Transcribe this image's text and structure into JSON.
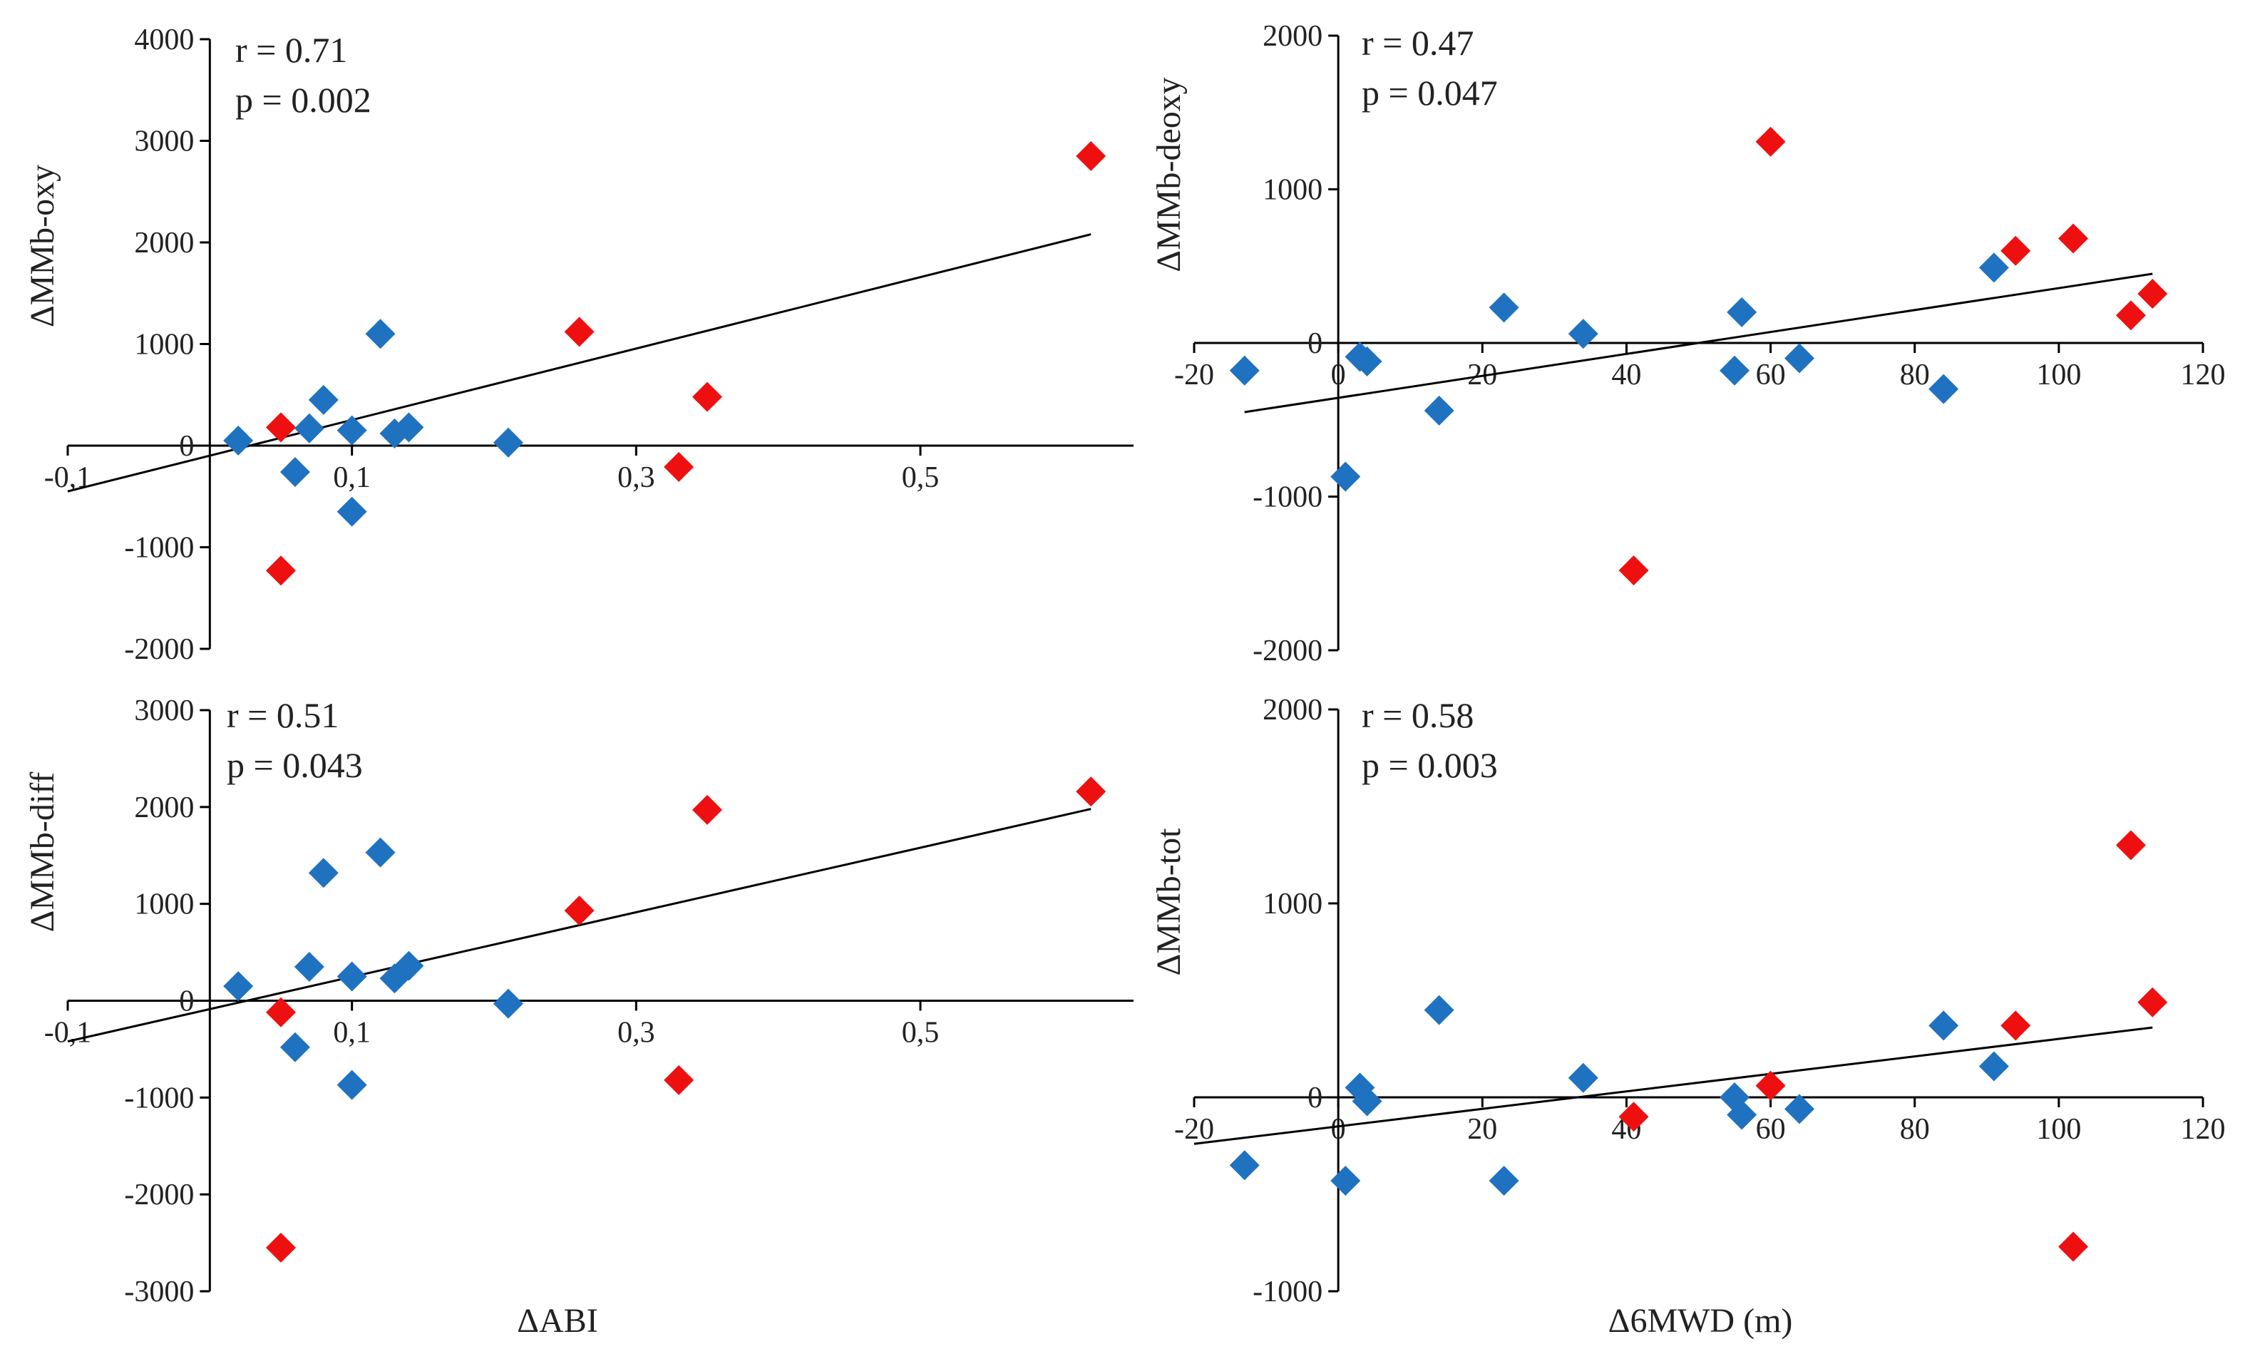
{
  "chart_data": [
    {
      "type": "scatter",
      "xlabel": "",
      "ylabel": "ΔMMb-oxy",
      "stats": [
        "r = 0.71",
        "p = 0.002"
      ],
      "xlim": [
        -0.1,
        0.65
      ],
      "ylim": [
        -2000,
        4000
      ],
      "xticks": [
        -0.1,
        0.1,
        0.3,
        0.5
      ],
      "xtick_labels": [
        "-0,1",
        "0,1",
        "0,3",
        "0,5"
      ],
      "yticks": [
        -2000,
        -1000,
        0,
        1000,
        2000,
        3000,
        4000
      ],
      "ytick_labels": [
        "-2000",
        "-1000",
        "0",
        "1000",
        "2000",
        "3000",
        "4000"
      ],
      "trendline": [
        [
          -0.1,
          -450
        ],
        [
          0.62,
          2080
        ]
      ],
      "series": [
        {
          "name": "blue",
          "color": "#1f72c0",
          "points": [
            [
              0.02,
              50
            ],
            [
              0.06,
              -260
            ],
            [
              0.07,
              170
            ],
            [
              0.08,
              450
            ],
            [
              0.1,
              150
            ],
            [
              0.1,
              -650
            ],
            [
              0.12,
              1100
            ],
            [
              0.13,
              120
            ],
            [
              0.14,
              180
            ],
            [
              0.21,
              30
            ]
          ]
        },
        {
          "name": "red",
          "color": "#ee1010",
          "points": [
            [
              0.05,
              180
            ],
            [
              0.05,
              -1230
            ],
            [
              0.26,
              1120
            ],
            [
              0.33,
              -210
            ],
            [
              0.35,
              480
            ],
            [
              0.62,
              2850
            ]
          ]
        }
      ]
    },
    {
      "type": "scatter",
      "xlabel": "",
      "ylabel": "ΔMMb-deoxy",
      "stats": [
        "r = 0.47",
        "p = 0.047"
      ],
      "xlim": [
        -20,
        120
      ],
      "ylim": [
        -2000,
        2000
      ],
      "xticks": [
        -20,
        0,
        20,
        40,
        60,
        80,
        100,
        120
      ],
      "xtick_labels": [
        "-20",
        "0",
        "20",
        "40",
        "60",
        "80",
        "100",
        "120"
      ],
      "yticks": [
        -2000,
        -1000,
        0,
        1000,
        2000
      ],
      "ytick_labels": [
        "-2000",
        "-1000",
        "0",
        "1000",
        "2000"
      ],
      "trendline": [
        [
          -13,
          -450
        ],
        [
          113,
          450
        ]
      ],
      "series": [
        {
          "name": "blue",
          "color": "#1f72c0",
          "points": [
            [
              -13,
              -180
            ],
            [
              1,
              -870
            ],
            [
              3,
              -90
            ],
            [
              4,
              -120
            ],
            [
              14,
              -440
            ],
            [
              23,
              230
            ],
            [
              34,
              60
            ],
            [
              55,
              -180
            ],
            [
              56,
              200
            ],
            [
              64,
              -100
            ],
            [
              84,
              -300
            ],
            [
              91,
              490
            ]
          ]
        },
        {
          "name": "red",
          "color": "#ee1010",
          "points": [
            [
              41,
              -1480
            ],
            [
              60,
              1310
            ],
            [
              94,
              600
            ],
            [
              102,
              680
            ],
            [
              110,
              180
            ],
            [
              113,
              320
            ]
          ]
        }
      ]
    },
    {
      "type": "scatter",
      "xlabel": "ΔABI",
      "ylabel": "ΔMMb-diff",
      "stats": [
        "r = 0.51",
        "p = 0.043"
      ],
      "xlim": [
        -0.1,
        0.65
      ],
      "ylim": [
        -3000,
        3000
      ],
      "xticks": [
        -0.1,
        0.1,
        0.3,
        0.5
      ],
      "xtick_labels": [
        "-0,1",
        "0,1",
        "0,3",
        "0,5"
      ],
      "yticks": [
        -3000,
        -2000,
        -1000,
        0,
        1000,
        2000,
        3000
      ],
      "ytick_labels": [
        "-3000",
        "-2000",
        "-1000",
        "0",
        "1000",
        "2000",
        "3000"
      ],
      "trendline": [
        [
          -0.1,
          -420
        ],
        [
          0.62,
          1980
        ]
      ],
      "series": [
        {
          "name": "blue",
          "color": "#1f72c0",
          "points": [
            [
              0.02,
              150
            ],
            [
              0.06,
              -480
            ],
            [
              0.07,
              350
            ],
            [
              0.08,
              1320
            ],
            [
              0.1,
              250
            ],
            [
              0.1,
              -870
            ],
            [
              0.12,
              1530
            ],
            [
              0.13,
              230
            ],
            [
              0.14,
              360
            ],
            [
              0.21,
              -30
            ]
          ]
        },
        {
          "name": "red",
          "color": "#ee1010",
          "points": [
            [
              0.05,
              -120
            ],
            [
              0.05,
              -2550
            ],
            [
              0.26,
              930
            ],
            [
              0.33,
              -820
            ],
            [
              0.35,
              1970
            ],
            [
              0.62,
              2160
            ]
          ]
        }
      ]
    },
    {
      "type": "scatter",
      "xlabel": "Δ6MWD (m)",
      "ylabel": "ΔMMb-tot",
      "stats": [
        "r = 0.58",
        "p = 0.003"
      ],
      "xlim": [
        -20,
        120
      ],
      "ylim": [
        -1000,
        2000
      ],
      "xticks": [
        -20,
        0,
        20,
        40,
        60,
        80,
        100,
        120
      ],
      "xtick_labels": [
        "-20",
        "0",
        "20",
        "40",
        "60",
        "80",
        "100",
        "120"
      ],
      "yticks": [
        -1000,
        0,
        1000,
        2000
      ],
      "ytick_labels": [
        "-1000",
        "0",
        "1000",
        "2000"
      ],
      "trendline": [
        [
          -20,
          -240
        ],
        [
          113,
          360
        ]
      ],
      "series": [
        {
          "name": "blue",
          "color": "#1f72c0",
          "points": [
            [
              -13,
              -350
            ],
            [
              1,
              -430
            ],
            [
              3,
              50
            ],
            [
              4,
              -20
            ],
            [
              14,
              450
            ],
            [
              23,
              -430
            ],
            [
              34,
              100
            ],
            [
              55,
              0
            ],
            [
              56,
              -90
            ],
            [
              64,
              -60
            ],
            [
              84,
              370
            ],
            [
              91,
              160
            ]
          ]
        },
        {
          "name": "red",
          "color": "#ee1010",
          "points": [
            [
              41,
              -100
            ],
            [
              60,
              60
            ],
            [
              94,
              370
            ],
            [
              102,
              -770
            ],
            [
              110,
              1300
            ],
            [
              113,
              490
            ]
          ]
        }
      ]
    }
  ]
}
